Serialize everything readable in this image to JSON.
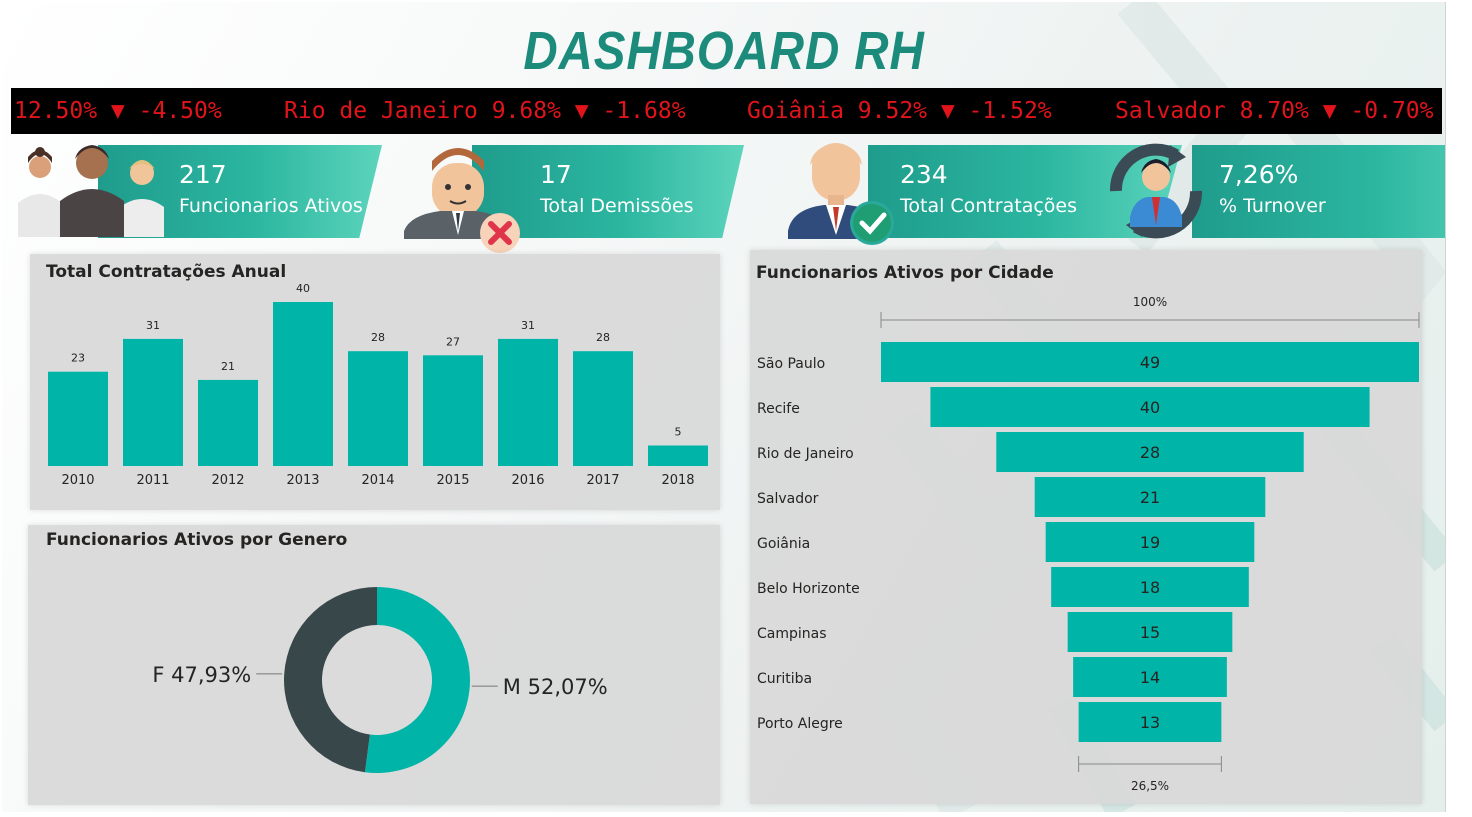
{
  "title": "DASHBOARD RH",
  "ticker": [
    "12.50% ▼ -4.50%",
    "Rio de Janeiro 9.68% ▼ -1.68%",
    "Goiânia 9.52% ▼ -1.52%",
    "Salvador 8.70% ▼ -0.70%"
  ],
  "kpis": [
    {
      "value": "217",
      "label": "Funcionarios Ativos",
      "icon": "team-people-icon"
    },
    {
      "value": "17",
      "label": "Total Demissões",
      "icon": "dismissed-employee-icon"
    },
    {
      "value": "234",
      "label": "Total Contratações",
      "icon": "hired-employee-icon"
    },
    {
      "value": "7,26%",
      "label": "% Turnover",
      "icon": "turnover-cycle-icon"
    }
  ],
  "colors": {
    "accent": "#00b5a8",
    "dark": "#37474a",
    "ticker_text": "#e0141a"
  },
  "chart_data": [
    {
      "type": "bar",
      "title": "Total Contratações Anual",
      "categories": [
        "2010",
        "2011",
        "2012",
        "2013",
        "2014",
        "2015",
        "2016",
        "2017",
        "2018"
      ],
      "values": [
        23,
        31,
        21,
        40,
        28,
        27,
        31,
        28,
        5
      ],
      "color": "#00b5a8"
    },
    {
      "type": "pie",
      "style": "donut",
      "title": "Funcionarios Ativos por Genero",
      "slices": [
        {
          "name": "M",
          "value": 52.07,
          "label": "M 52,07%",
          "color": "#00b5a8"
        },
        {
          "name": "F",
          "value": 47.93,
          "label": "F 47,93%",
          "color": "#37474a"
        }
      ]
    },
    {
      "type": "bar",
      "style": "funnel",
      "title": "Funcionarios Ativos por Cidade",
      "categories": [
        "São Paulo",
        "Recife",
        "Rio de Janeiro",
        "Salvador",
        "Goiânia",
        "Belo Horizonte",
        "Campinas",
        "Curitiba",
        "Porto Alegre"
      ],
      "values": [
        49,
        40,
        28,
        21,
        19,
        18,
        15,
        14,
        13
      ],
      "top_label": "100%",
      "bottom_label": "26,5%",
      "color": "#00b5a8"
    }
  ]
}
